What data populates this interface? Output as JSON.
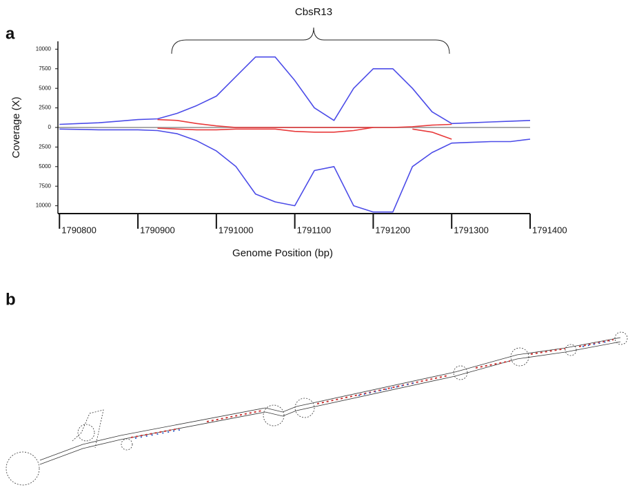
{
  "panel_labels": [
    "a",
    "b"
  ],
  "chart_data": {
    "type": "line",
    "annotation": "CbsR13",
    "xlabel": "Genome Position (bp)",
    "ylabel": "Coverage (X)",
    "xlim": [
      1790798,
      1791400
    ],
    "ylim": [
      -11000,
      11000
    ],
    "xticks": [
      1790800,
      1790900,
      1791000,
      1791100,
      1791200,
      1791300,
      1791400
    ],
    "yticks": [
      10000,
      7500,
      5000,
      2500,
      0,
      {
        "value": -2500,
        "label": "2500"
      },
      {
        "value": -5000,
        "label": "5000"
      },
      {
        "value": -7500,
        "label": "7500"
      },
      {
        "value": -10000,
        "label": "10000"
      }
    ],
    "x": [
      1790800,
      1790825,
      1790850,
      1790875,
      1790900,
      1790925,
      1790950,
      1790975,
      1791000,
      1791025,
      1791050,
      1791075,
      1791100,
      1791125,
      1791150,
      1791175,
      1791200,
      1791225,
      1791250,
      1791275,
      1791300,
      1791325,
      1791350,
      1791375,
      1791400
    ],
    "series": [
      {
        "color": "#4b4be8",
        "values": [
          400,
          500,
          600,
          800,
          1000,
          1100,
          1800,
          2800,
          4000,
          6500,
          9000,
          9000,
          6000,
          2500,
          900,
          5000,
          7500,
          7500,
          5000,
          2000,
          500,
          600,
          700,
          800,
          900
        ]
      },
      {
        "color": "#4b4be8",
        "values": [
          -200,
          -250,
          -300,
          -300,
          -300,
          -400,
          -800,
          -1700,
          -3000,
          -5000,
          -8500,
          -9500,
          -10000,
          -5500,
          -5000,
          -10000,
          -10800,
          -10800,
          -5000,
          -3200,
          -2000,
          -1900,
          -1800,
          -1800,
          -1500
        ]
      },
      {
        "color": "#e8393a",
        "values": [
          null,
          null,
          null,
          null,
          null,
          1000,
          900,
          500,
          200,
          0,
          0,
          0,
          0,
          0,
          0,
          0,
          0,
          0,
          100,
          300,
          400,
          null,
          null,
          null,
          null
        ]
      },
      {
        "color": "#e8393a",
        "values": [
          null,
          null,
          null,
          null,
          null,
          -100,
          -200,
          -300,
          -300,
          -200,
          -200,
          -200,
          -500,
          -600,
          -600,
          -400,
          0,
          null,
          -200,
          -600,
          -1500,
          null,
          null,
          null,
          null
        ]
      }
    ]
  }
}
